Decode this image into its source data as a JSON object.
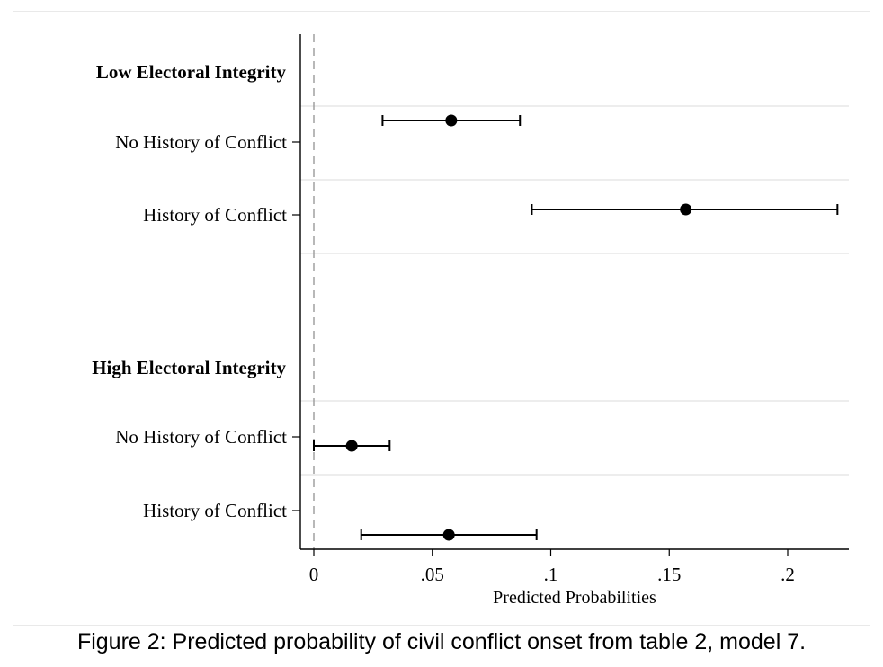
{
  "caption": "Figure 2: Predicted probability of civil conflict onset from table 2, model 7.",
  "chart_data": {
    "type": "coefficient-plot",
    "title": "",
    "xlabel": "Predicted Probabilities",
    "ylabel": "",
    "xlim": [
      -0.006,
      0.226
    ],
    "xticks": [
      {
        "value": 0,
        "label": "0"
      },
      {
        "value": 0.05,
        "label": ".05"
      },
      {
        "value": 0.1,
        "label": ".1"
      },
      {
        "value": 0.15,
        "label": ".15"
      },
      {
        "value": 0.2,
        "label": ".2"
      }
    ],
    "reference_line": 0,
    "grid": true,
    "groups": [
      {
        "label": "Low Electoral Integrity",
        "rows": [
          {
            "label": "No History of Conflict",
            "estimate": 0.058,
            "ci_low": 0.029,
            "ci_high": 0.087
          },
          {
            "label": "History of Conflict",
            "estimate": 0.157,
            "ci_low": 0.092,
            "ci_high": 0.221
          }
        ]
      },
      {
        "label": "High Electoral Integrity",
        "rows": [
          {
            "label": "No History of Conflict",
            "estimate": 0.016,
            "ci_low": 0.0,
            "ci_high": 0.032
          },
          {
            "label": "History of Conflict",
            "estimate": 0.057,
            "ci_low": 0.02,
            "ci_high": 0.094
          }
        ]
      }
    ]
  }
}
